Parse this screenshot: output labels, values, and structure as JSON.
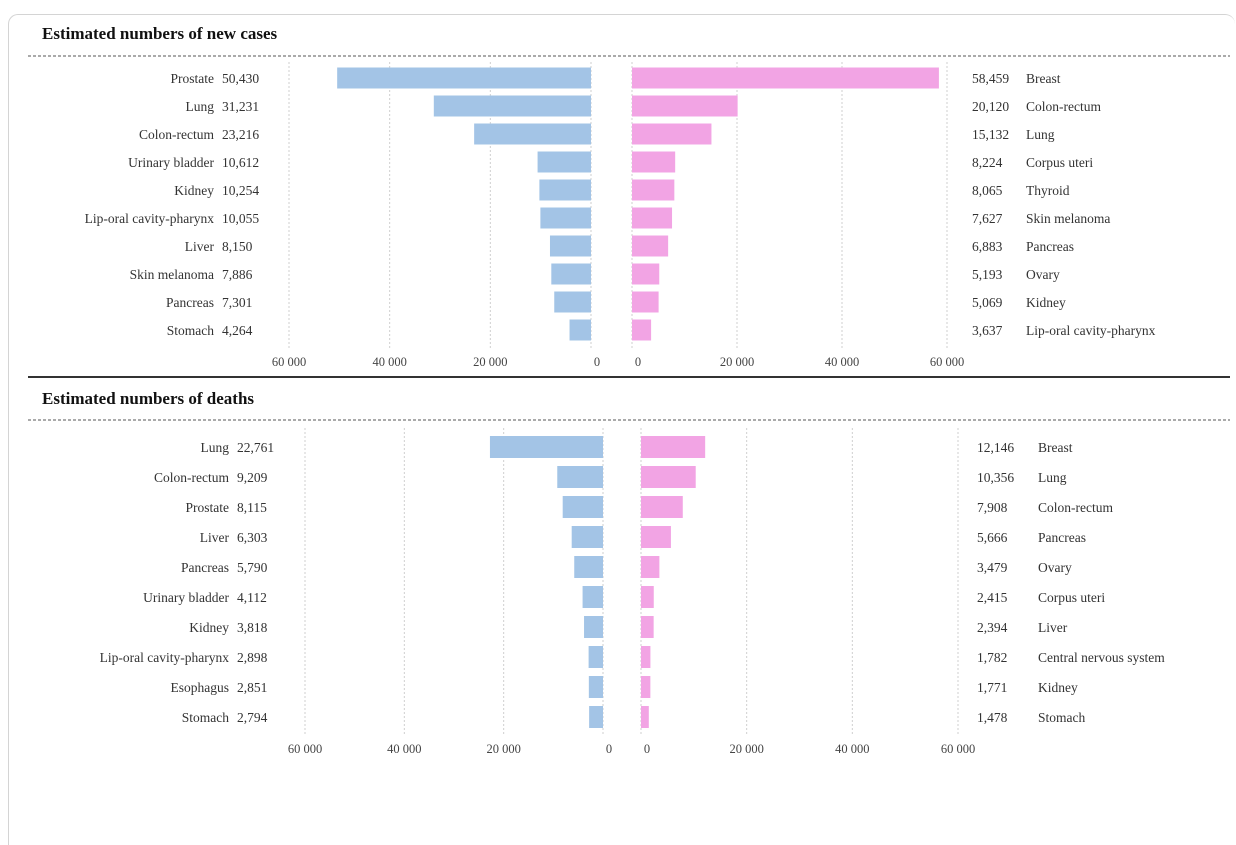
{
  "colors": {
    "male": "#a3c4e6",
    "female": "#f2a4e4",
    "grid": "#cfcfcf"
  },
  "chart_data": [
    {
      "type": "bar",
      "title": "Estimated numbers of new cases",
      "xlim": [
        0,
        60000
      ],
      "tick_labels": [
        "60 000",
        "40 000",
        "20 000",
        "0"
      ],
      "tick_labels_right": [
        "0",
        "20 000",
        "40 000",
        "60 000"
      ],
      "left": {
        "categories": [
          "Prostate",
          "Lung",
          "Colon-rectum",
          "Urinary bladder",
          "Kidney",
          "Lip-oral cavity-pharynx",
          "Liver",
          "Skin melanoma",
          "Pancreas",
          "Stomach"
        ],
        "values": [
          50430,
          31231,
          23216,
          10612,
          10254,
          10055,
          8150,
          7886,
          7301,
          4264
        ],
        "labels": [
          "50,430",
          "31,231",
          "23,216",
          "10,612",
          "10,254",
          "10,055",
          "8,150",
          "7,886",
          "7,301",
          "4,264"
        ]
      },
      "right": {
        "categories": [
          "Breast",
          "Colon-rectum",
          "Lung",
          "Corpus uteri",
          "Thyroid",
          "Skin melanoma",
          "Pancreas",
          "Ovary",
          "Kidney",
          "Lip-oral cavity-pharynx"
        ],
        "values": [
          58459,
          20120,
          15132,
          8224,
          8065,
          7627,
          6883,
          5193,
          5069,
          3637
        ],
        "labels": [
          "58,459",
          "20,120",
          "15,132",
          "8,224",
          "8,065",
          "7,627",
          "6,883",
          "5,193",
          "5,069",
          "3,637"
        ]
      }
    },
    {
      "type": "bar",
      "title": "Estimated numbers of deaths",
      "xlim": [
        0,
        60000
      ],
      "tick_labels": [
        "60 000",
        "40 000",
        "20 000",
        "0"
      ],
      "tick_labels_right": [
        "0",
        "20 000",
        "40 000",
        "60 000"
      ],
      "left": {
        "categories": [
          "Lung",
          "Colon-rectum",
          "Prostate",
          "Liver",
          "Pancreas",
          "Urinary bladder",
          "Kidney",
          "Lip-oral cavity-pharynx",
          "Esophagus",
          "Stomach"
        ],
        "values": [
          22761,
          9209,
          8115,
          6303,
          5790,
          4112,
          3818,
          2898,
          2851,
          2794
        ],
        "labels": [
          "22,761",
          "9,209",
          "8,115",
          "6,303",
          "5,790",
          "4,112",
          "3,818",
          "2,898",
          "2,851",
          "2,794"
        ]
      },
      "right": {
        "categories": [
          "Breast",
          "Lung",
          "Colon-rectum",
          "Pancreas",
          "Ovary",
          "Corpus uteri",
          "Liver",
          "Central nervous system",
          "Kidney",
          "Stomach"
        ],
        "values": [
          12146,
          10356,
          7908,
          5666,
          3479,
          2415,
          2394,
          1782,
          1771,
          1478
        ],
        "labels": [
          "12,146",
          "10,356",
          "7,908",
          "5,666",
          "3,479",
          "2,415",
          "2,394",
          "1,782",
          "1,771",
          "1,478"
        ]
      }
    }
  ]
}
